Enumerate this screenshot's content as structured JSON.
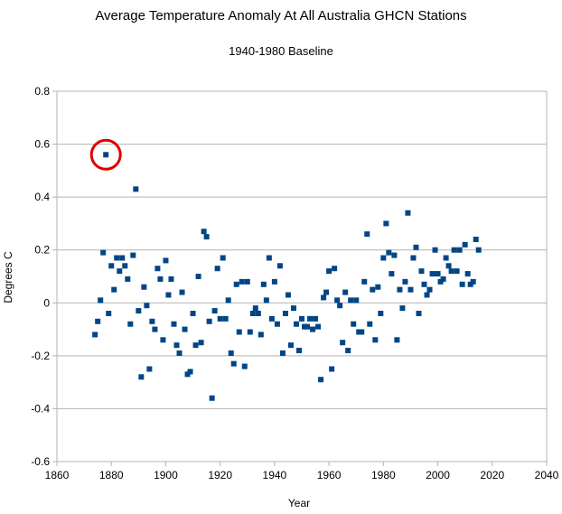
{
  "chart_data": {
    "type": "scatter",
    "title": "Average Temperature Anomaly At All Australia GHCN Stations",
    "subtitle": "1940-1980 Baseline",
    "xlabel": "Year",
    "ylabel": "Degrees C",
    "xlim": [
      1860,
      2040
    ],
    "ylim": [
      -0.6,
      0.8
    ],
    "xticks": [
      1860,
      1880,
      1900,
      1920,
      1940,
      1960,
      1980,
      2000,
      2020,
      2040
    ],
    "yticks": [
      -0.6,
      -0.4,
      -0.2,
      0,
      0.2,
      0.4,
      0.6,
      0.8
    ],
    "ytick_labels": [
      "-0.6",
      "-0.4",
      "-0.2",
      "0",
      "0.2",
      "0.4",
      "0.6",
      "0.8"
    ],
    "grid": "horizontal",
    "legend": "none",
    "marker_color": "#004586",
    "highlight_color": "#e00000",
    "highlight_point": [
      1878,
      0.56
    ],
    "series": [
      {
        "points": [
          [
            1874,
            -0.12
          ],
          [
            1875,
            -0.07
          ],
          [
            1876,
            0.01
          ],
          [
            1877,
            0.19
          ],
          [
            1878,
            0.56
          ],
          [
            1879,
            -0.04
          ],
          [
            1880,
            0.14
          ],
          [
            1881,
            0.05
          ],
          [
            1882,
            0.17
          ],
          [
            1883,
            0.12
          ],
          [
            1884,
            0.17
          ],
          [
            1885,
            0.14
          ],
          [
            1886,
            0.09
          ],
          [
            1887,
            -0.08
          ],
          [
            1888,
            0.18
          ],
          [
            1889,
            0.43
          ],
          [
            1890,
            -0.03
          ],
          [
            1891,
            -0.28
          ],
          [
            1892,
            0.06
          ],
          [
            1893,
            -0.01
          ],
          [
            1894,
            -0.25
          ],
          [
            1895,
            -0.07
          ],
          [
            1896,
            -0.1
          ],
          [
            1897,
            0.13
          ],
          [
            1898,
            0.09
          ],
          [
            1899,
            -0.14
          ],
          [
            1900,
            0.16
          ],
          [
            1901,
            0.03
          ],
          [
            1902,
            0.09
          ],
          [
            1903,
            -0.08
          ],
          [
            1904,
            -0.16
          ],
          [
            1905,
            -0.19
          ],
          [
            1906,
            0.04
          ],
          [
            1907,
            -0.1
          ],
          [
            1908,
            -0.27
          ],
          [
            1909,
            -0.26
          ],
          [
            1910,
            -0.04
          ],
          [
            1911,
            -0.16
          ],
          [
            1912,
            0.1
          ],
          [
            1913,
            -0.15
          ],
          [
            1914,
            0.27
          ],
          [
            1915,
            0.25
          ],
          [
            1916,
            -0.07
          ],
          [
            1917,
            -0.36
          ],
          [
            1918,
            -0.03
          ],
          [
            1919,
            0.13
          ],
          [
            1920,
            -0.06
          ],
          [
            1921,
            0.17
          ],
          [
            1922,
            -0.06
          ],
          [
            1923,
            0.01
          ],
          [
            1924,
            -0.19
          ],
          [
            1925,
            -0.23
          ],
          [
            1926,
            0.07
          ],
          [
            1927,
            -0.11
          ],
          [
            1928,
            0.08
          ],
          [
            1929,
            -0.24
          ],
          [
            1930,
            0.08
          ],
          [
            1931,
            -0.11
          ],
          [
            1932,
            -0.04
          ],
          [
            1933,
            -0.02
          ],
          [
            1934,
            -0.04
          ],
          [
            1935,
            -0.12
          ],
          [
            1936,
            0.07
          ],
          [
            1937,
            0.01
          ],
          [
            1938,
            0.17
          ],
          [
            1939,
            -0.06
          ],
          [
            1940,
            0.08
          ],
          [
            1941,
            -0.08
          ],
          [
            1942,
            0.14
          ],
          [
            1943,
            -0.19
          ],
          [
            1944,
            -0.04
          ],
          [
            1945,
            0.03
          ],
          [
            1946,
            -0.16
          ],
          [
            1947,
            -0.02
          ],
          [
            1948,
            -0.08
          ],
          [
            1949,
            -0.18
          ],
          [
            1950,
            -0.06
          ],
          [
            1951,
            -0.09
          ],
          [
            1952,
            -0.09
          ],
          [
            1953,
            -0.06
          ],
          [
            1954,
            -0.1
          ],
          [
            1955,
            -0.06
          ],
          [
            1956,
            -0.09
          ],
          [
            1957,
            -0.29
          ],
          [
            1958,
            0.02
          ],
          [
            1959,
            0.04
          ],
          [
            1960,
            0.12
          ],
          [
            1961,
            -0.25
          ],
          [
            1962,
            0.13
          ],
          [
            1963,
            0.01
          ],
          [
            1964,
            -0.01
          ],
          [
            1965,
            -0.15
          ],
          [
            1966,
            0.04
          ],
          [
            1967,
            -0.18
          ],
          [
            1968,
            0.01
          ],
          [
            1969,
            -0.08
          ],
          [
            1970,
            0.01
          ],
          [
            1971,
            -0.11
          ],
          [
            1972,
            -0.11
          ],
          [
            1973,
            0.08
          ],
          [
            1974,
            0.26
          ],
          [
            1975,
            -0.08
          ],
          [
            1976,
            0.05
          ],
          [
            1977,
            -0.14
          ],
          [
            1978,
            0.06
          ],
          [
            1979,
            -0.04
          ],
          [
            1980,
            0.17
          ],
          [
            1981,
            0.3
          ],
          [
            1982,
            0.19
          ],
          [
            1983,
            0.11
          ],
          [
            1984,
            0.18
          ],
          [
            1985,
            -0.14
          ],
          [
            1986,
            0.05
          ],
          [
            1987,
            -0.02
          ],
          [
            1988,
            0.08
          ],
          [
            1989,
            0.34
          ],
          [
            1990,
            0.05
          ],
          [
            1991,
            0.17
          ],
          [
            1992,
            0.21
          ],
          [
            1993,
            -0.04
          ],
          [
            1994,
            0.12
          ],
          [
            1995,
            0.07
          ],
          [
            1996,
            0.03
          ],
          [
            1997,
            0.05
          ],
          [
            1998,
            0.11
          ],
          [
            1999,
            0.2
          ],
          [
            2000,
            0.11
          ],
          [
            2001,
            0.08
          ],
          [
            2002,
            0.09
          ],
          [
            2003,
            0.17
          ],
          [
            2004,
            0.14
          ],
          [
            2005,
            0.12
          ],
          [
            2006,
            0.2
          ],
          [
            2007,
            0.12
          ],
          [
            2008,
            0.2
          ],
          [
            2009,
            0.07
          ],
          [
            2010,
            0.22
          ],
          [
            2011,
            0.11
          ],
          [
            2012,
            0.07
          ],
          [
            2013,
            0.08
          ],
          [
            2014,
            0.24
          ],
          [
            2015,
            0.2
          ]
        ]
      }
    ]
  }
}
